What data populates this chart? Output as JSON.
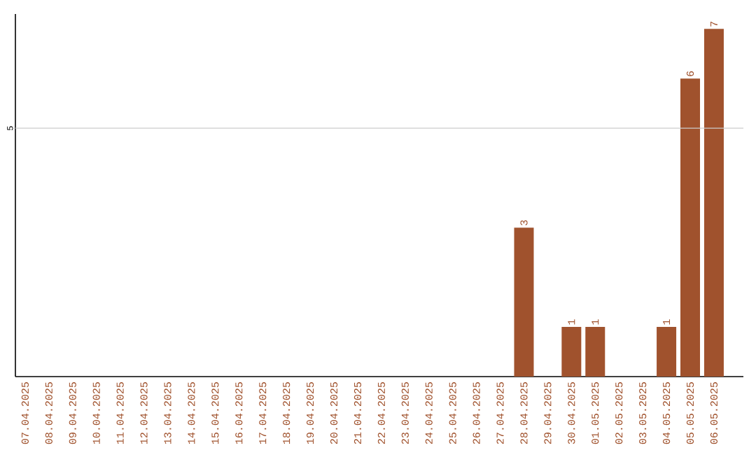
{
  "chart_data": {
    "type": "bar",
    "categories": [
      "07.04.2025",
      "08.04.2025",
      "09.04.2025",
      "10.04.2025",
      "11.04.2025",
      "12.04.2025",
      "13.04.2025",
      "14.04.2025",
      "15.04.2025",
      "16.04.2025",
      "17.04.2025",
      "18.04.2025",
      "19.04.2025",
      "20.04.2025",
      "21.04.2025",
      "22.04.2025",
      "23.04.2025",
      "24.04.2025",
      "25.04.2025",
      "26.04.2025",
      "27.04.2025",
      "28.04.2025",
      "29.04.2025",
      "30.04.2025",
      "01.05.2025",
      "02.05.2025",
      "03.05.2025",
      "04.05.2025",
      "05.05.2025",
      "06.05.2025"
    ],
    "values": [
      null,
      null,
      null,
      null,
      null,
      null,
      null,
      null,
      null,
      null,
      null,
      null,
      null,
      null,
      null,
      null,
      null,
      null,
      null,
      null,
      null,
      3,
      null,
      1,
      1,
      null,
      null,
      1,
      6,
      7
    ],
    "data_labels": true,
    "color": "#a0522d",
    "ylim": [
      0,
      7.3
    ],
    "ref_lines": [
      {
        "axis": "y",
        "value": 5,
        "label": "5",
        "color": "#cccccc"
      }
    ]
  }
}
